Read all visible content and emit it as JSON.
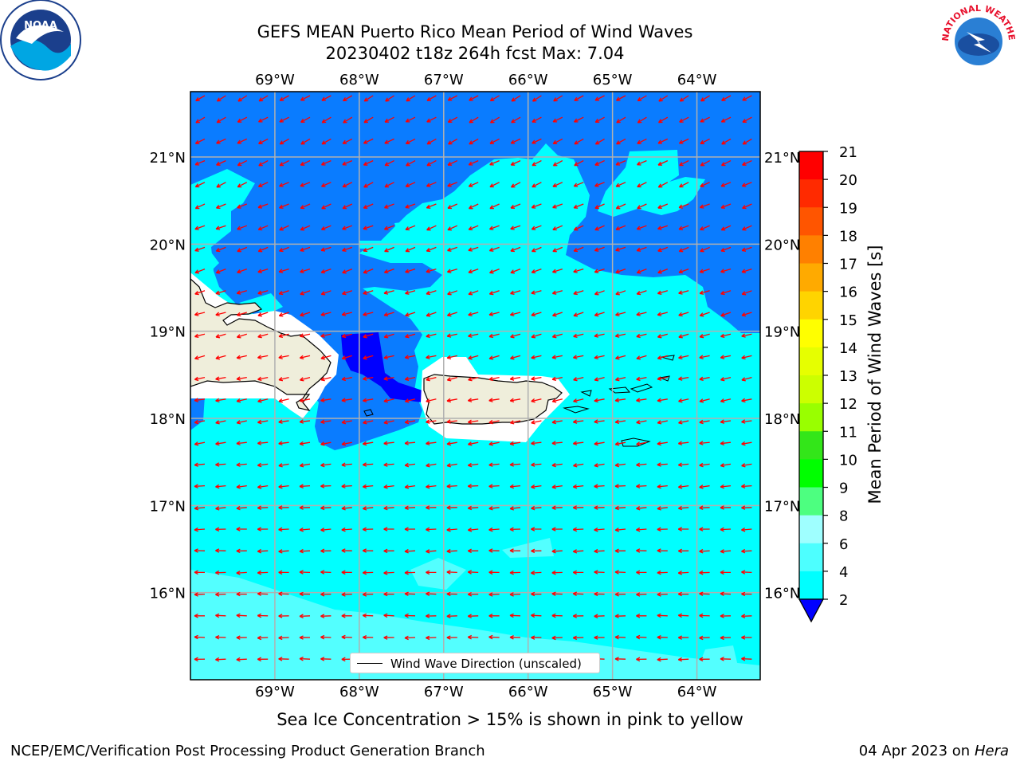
{
  "title": {
    "line1": "GEFS MEAN Puerto Rico Mean Period of Wind Waves",
    "line2": "20230402 t18z 264h fcst   Max: 7.04"
  },
  "axes": {
    "lon_labels": [
      "69°W",
      "68°W",
      "67°W",
      "66°W",
      "65°W",
      "64°W"
    ],
    "lat_labels": [
      "21°N",
      "20°N",
      "19°N",
      "18°N",
      "17°N",
      "16°N"
    ],
    "lon_range": [
      -70.0,
      -63.25
    ],
    "lat_range": [
      15.0,
      21.75
    ]
  },
  "colorbar": {
    "label": "Mean Period of Wind Waves [s]",
    "ticks": [
      "21",
      "20",
      "19",
      "18",
      "17",
      "16",
      "15",
      "14",
      "13",
      "12",
      "11",
      "10",
      "9",
      "8",
      "6",
      "4",
      "2"
    ],
    "colors": [
      "#ff0000",
      "#ff2a00",
      "#ff5500",
      "#ff8000",
      "#ffaa00",
      "#ffd400",
      "#ffff00",
      "#e6ff00",
      "#ccff00",
      "#99ff00",
      "#33e619",
      "#00ff00",
      "#4dff80",
      "#9fffff",
      "#4dffff",
      "#00ffff",
      "#0080ff"
    ],
    "extend_color": "#0000ff"
  },
  "legend": {
    "label": "Wind Wave Direction (unscaled)"
  },
  "note": "Sea Ice Concentration > 15% is shown in pink to yellow",
  "footer": {
    "left": "NCEP/EMC/Verification Post Processing Product Generation Branch",
    "right_date": "04 Apr 2023 on ",
    "right_host": "Hera"
  },
  "logos": {
    "left": "NOAA",
    "right": "NATIONAL WEATHER SERVICE"
  },
  "colors": {
    "land": "#efeedb",
    "period_2_4": "#0a7cff",
    "period_4_6": "#00ffff",
    "period_6_8": "#53ffff",
    "period_lt2": "#0000ff",
    "arrow": "#ff0000"
  }
}
